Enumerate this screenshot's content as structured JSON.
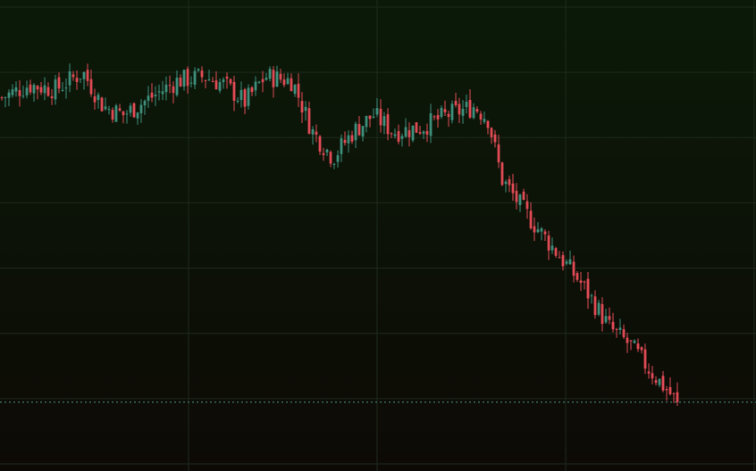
{
  "chart_data": {
    "type": "candlestick",
    "title": "",
    "xlabel": "",
    "ylabel": "",
    "ylim": [
      0,
      100
    ],
    "grid": true,
    "legend": "none",
    "colors": {
      "background_top": "#0b1a08",
      "background_bottom": "#0d0a06",
      "grid": "#1e2a1c",
      "up": "#3e8e7c",
      "down": "#e04a55",
      "last_price_line": "#4f9a8c"
    },
    "last_price": 8.6,
    "candles": []
  }
}
